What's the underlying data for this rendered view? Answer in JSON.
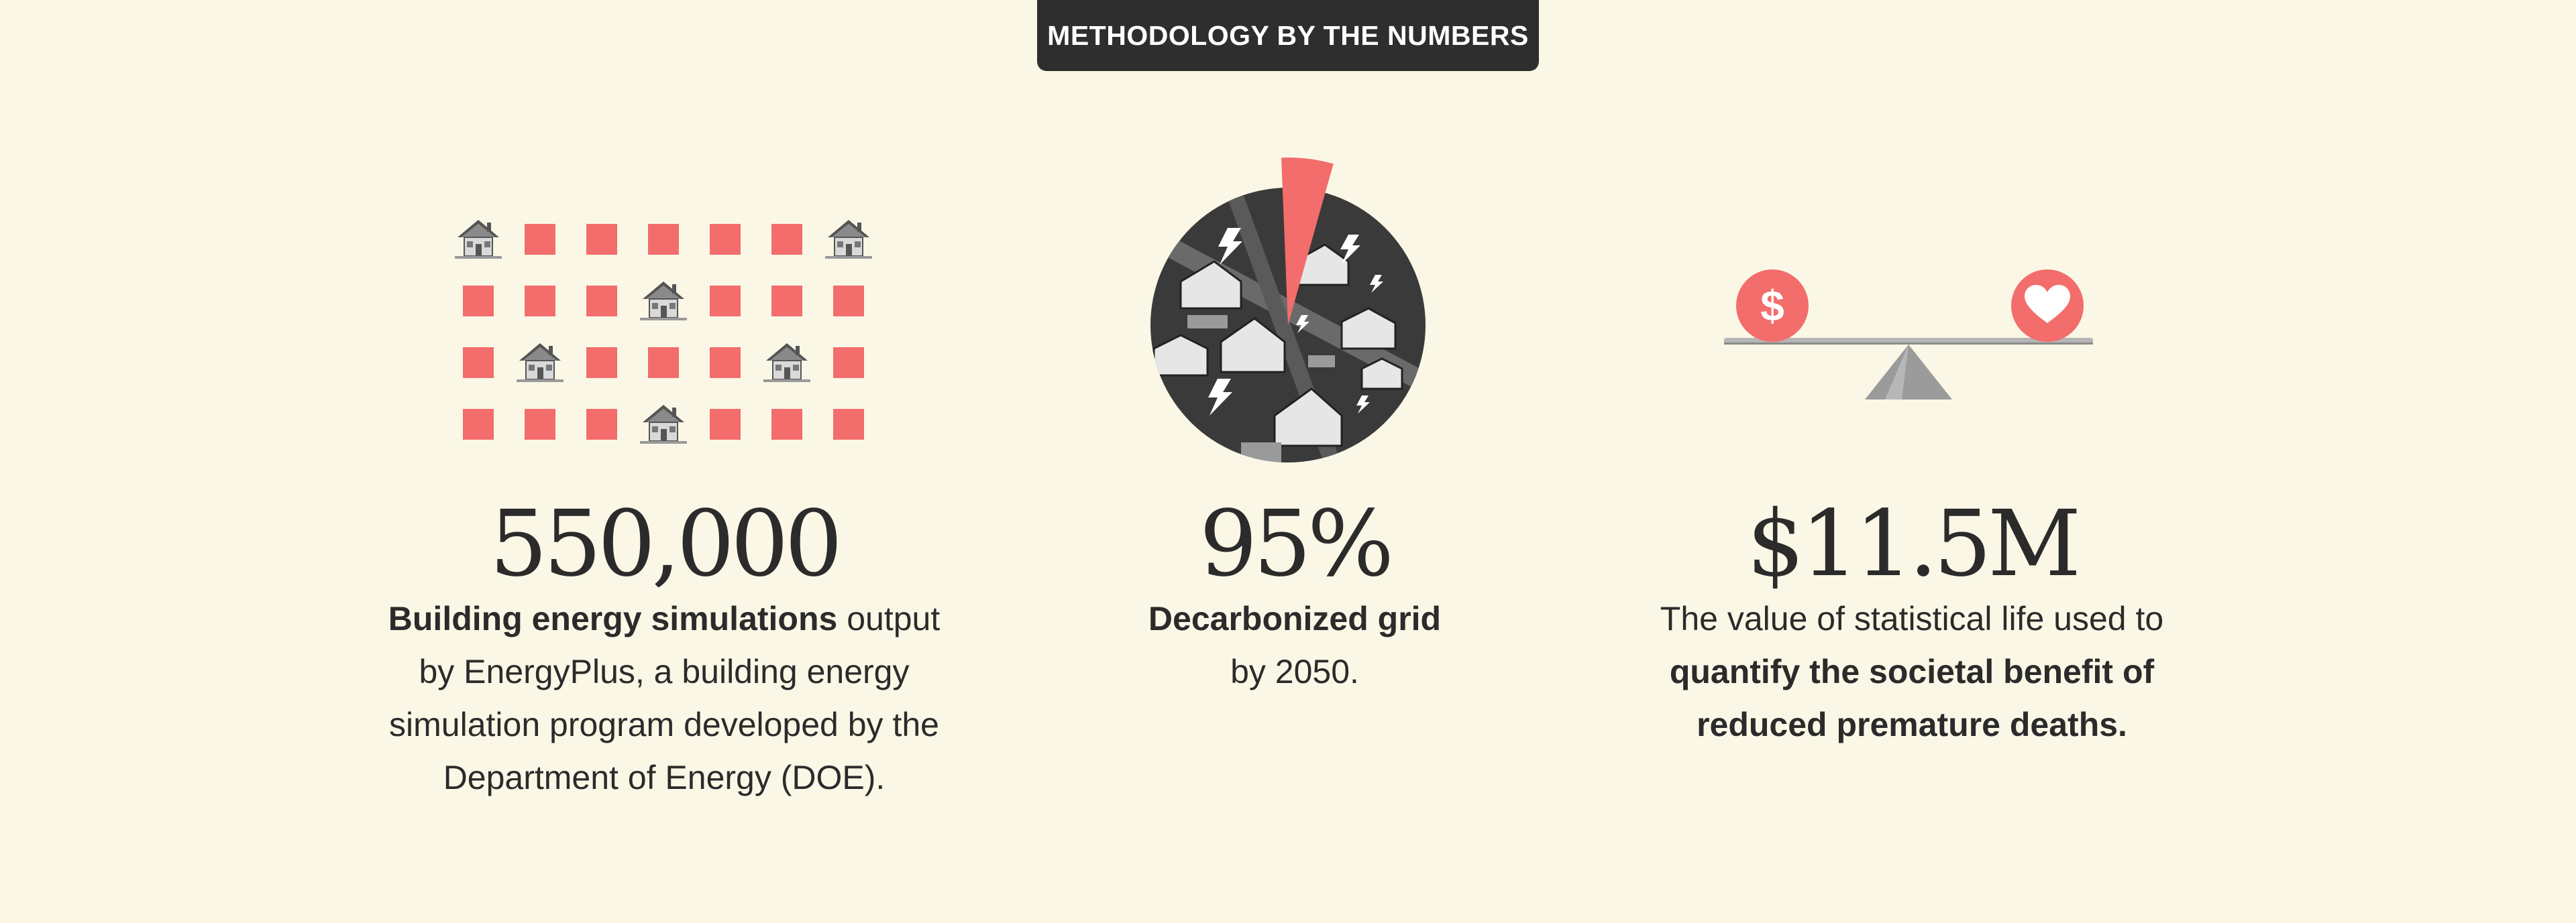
{
  "header": {
    "title": "METHODOLOGY BY THE NUMBERS"
  },
  "stats": [
    {
      "number": "550,000",
      "desc_bold": "Building energy simulations",
      "desc_rest": " output by EnergyPlus, a building energy simulation program developed by the Department of Energy (DOE)."
    },
    {
      "number": "95%",
      "desc_bold": "Decarbonized grid",
      "desc_rest": " by 2050.",
      "pie_fraction": 0.05
    },
    {
      "number": "$11.5M",
      "desc_lead": "The value of statistical life used to ",
      "desc_bold": "quantify the societal benefit of reduced premature deaths."
    }
  ],
  "colors": {
    "accent": "#F26D6B",
    "background": "#FBF7E6",
    "text": "#2b2b2b",
    "header_bg": "#2e2e2e"
  },
  "icons": {
    "house": "house-icon",
    "bolt": "lightning-bolt-icon",
    "dollar": "dollar-icon",
    "heart": "heart-icon"
  }
}
